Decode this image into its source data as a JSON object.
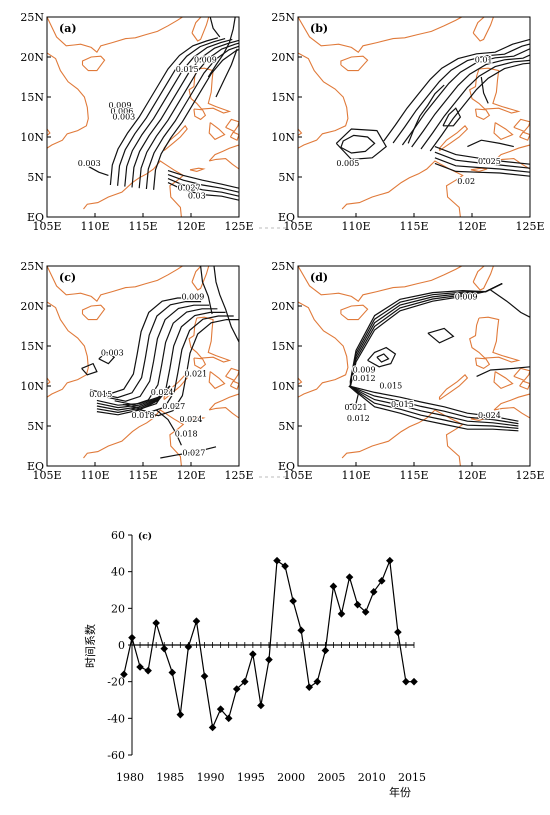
{
  "maps": {
    "x_ticks": [
      "105E",
      "110E",
      "115E",
      "120E",
      "125E"
    ],
    "y_ticks": [
      "EQ",
      "5N",
      "10N",
      "15N",
      "20N",
      "25N"
    ],
    "coast_color": "#e07a3a",
    "contour_color": "#111111",
    "panels": [
      {
        "label": "(a)",
        "contour_labels": [
          {
            "text": "0.009",
            "lon": 121.5,
            "lat": 19.3
          },
          {
            "text": "0.015",
            "lon": 119.6,
            "lat": 18.1
          },
          {
            "text": "0.009",
            "lon": 112.6,
            "lat": 13.6
          },
          {
            "text": "0.006",
            "lon": 112.8,
            "lat": 12.9
          },
          {
            "text": "0.003",
            "lon": 113.0,
            "lat": 12.2
          },
          {
            "text": "0.003",
            "lon": 109.4,
            "lat": 6.4
          },
          {
            "text": "0.027",
            "lon": 119.8,
            "lat": 3.3
          },
          {
            "text": "0.03",
            "lon": 120.6,
            "lat": 2.3
          }
        ]
      },
      {
        "label": "(b)",
        "contour_labels": [
          {
            "text": "0.01",
            "lon": 121.0,
            "lat": 19.3
          },
          {
            "text": "0.005",
            "lon": 109.3,
            "lat": 6.4
          },
          {
            "text": "0.025",
            "lon": 121.5,
            "lat": 6.6
          },
          {
            "text": "0.02",
            "lon": 119.5,
            "lat": 4.1
          }
        ]
      },
      {
        "label": "(c)",
        "contour_labels": [
          {
            "text": "0.009",
            "lon": 120.2,
            "lat": 20.8
          },
          {
            "text": "0.003",
            "lon": 111.8,
            "lat": 13.8
          },
          {
            "text": "0.021",
            "lon": 120.5,
            "lat": 11.2
          },
          {
            "text": "0.015",
            "lon": 110.6,
            "lat": 8.6
          },
          {
            "text": "0.024",
            "lon": 117.0,
            "lat": 8.9
          },
          {
            "text": "0.027",
            "lon": 118.2,
            "lat": 7.1
          },
          {
            "text": "0.018",
            "lon": 115.0,
            "lat": 6.0
          },
          {
            "text": "0.024",
            "lon": 120.0,
            "lat": 5.5
          },
          {
            "text": "0.018",
            "lon": 119.5,
            "lat": 3.7
          },
          {
            "text": "0.027",
            "lon": 120.3,
            "lat": 1.3
          }
        ]
      },
      {
        "label": "(d)",
        "contour_labels": [
          {
            "text": "0.009",
            "lon": 119.5,
            "lat": 20.8
          },
          {
            "text": "0.009",
            "lon": 110.7,
            "lat": 11.7
          },
          {
            "text": "0.012",
            "lon": 110.7,
            "lat": 10.6
          },
          {
            "text": "0.015",
            "lon": 113.0,
            "lat": 9.7
          },
          {
            "text": "0.021",
            "lon": 110.0,
            "lat": 7.0
          },
          {
            "text": "0.015",
            "lon": 114.0,
            "lat": 7.4
          },
          {
            "text": "0.012",
            "lon": 110.2,
            "lat": 5.6
          },
          {
            "text": "0.024",
            "lon": 121.5,
            "lat": 6.0
          }
        ]
      }
    ]
  },
  "chart_data": {
    "type": "line",
    "label": "(c)",
    "ylabel": "时间系数",
    "xlabel": "年份",
    "x_ticks": [
      1980,
      1985,
      1990,
      1995,
      2000,
      2005,
      2010,
      2015
    ],
    "y_ticks": [
      60,
      40,
      20,
      0,
      -20,
      -40,
      -60
    ],
    "xlim": [
      1980,
      2015
    ],
    "ylim": [
      -60,
      60
    ],
    "marker": "diamond",
    "series": [
      {
        "x": [
          1979,
          1980,
          1981,
          1982,
          1983,
          1984,
          1985,
          1986,
          1987,
          1988,
          1989,
          1990,
          1991,
          1992,
          1993,
          1994,
          1995,
          1996,
          1997,
          1998,
          1999,
          2000,
          2001,
          2002,
          2003,
          2004,
          2005,
          2006,
          2007,
          2008,
          2009,
          2010,
          2011,
          2012,
          2013,
          2014,
          2015
        ],
        "values": [
          -16,
          4,
          -12,
          -14,
          12,
          -2,
          -15,
          -38,
          -1,
          13,
          -17,
          -45,
          -35,
          -40,
          -24,
          -20,
          -5,
          -33,
          -8,
          46,
          43,
          24,
          8,
          -23,
          -20,
          -3,
          32,
          17,
          37,
          22,
          18,
          29,
          35,
          46,
          7,
          -20,
          -20
        ]
      }
    ]
  }
}
